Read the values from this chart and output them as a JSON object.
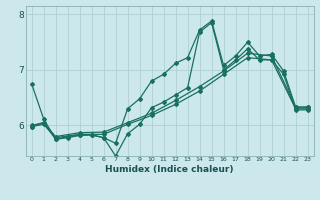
{
  "xlabel": "Humidex (Indice chaleur)",
  "bg_color": "#cce8ec",
  "line_color": "#1a7060",
  "grid_color": "#b0d0d4",
  "xlim": [
    -0.5,
    23.5
  ],
  "ylim": [
    5.45,
    8.15
  ],
  "xticks": [
    0,
    1,
    2,
    3,
    4,
    5,
    6,
    7,
    8,
    9,
    10,
    11,
    12,
    13,
    14,
    15,
    16,
    17,
    18,
    19,
    20,
    21,
    22,
    23
  ],
  "yticks": [
    6,
    7,
    8
  ],
  "line1_x": [
    0,
    1,
    2,
    3,
    4,
    5,
    6,
    7,
    8,
    9,
    10,
    11,
    12,
    13,
    14,
    15,
    16,
    17,
    18,
    19,
    20,
    21,
    22,
    23
  ],
  "line1_y": [
    6.75,
    6.12,
    5.75,
    5.8,
    5.83,
    5.83,
    5.78,
    5.68,
    6.3,
    6.48,
    6.8,
    6.92,
    7.12,
    7.22,
    7.72,
    7.88,
    7.08,
    7.25,
    7.5,
    7.25,
    7.28,
    6.98,
    6.33,
    6.33
  ],
  "line2_x": [
    0,
    1,
    2,
    3,
    4,
    5,
    6,
    7,
    8,
    9,
    10,
    11,
    12,
    13,
    14,
    15,
    16,
    17,
    18,
    19,
    20,
    21,
    22,
    23
  ],
  "line2_y": [
    5.98,
    6.05,
    5.75,
    5.78,
    5.82,
    5.83,
    5.78,
    5.45,
    5.85,
    6.02,
    6.32,
    6.42,
    6.55,
    6.68,
    7.68,
    7.85,
    7.0,
    7.18,
    7.38,
    7.18,
    7.18,
    6.92,
    6.28,
    6.28
  ],
  "line3_x": [
    0,
    1,
    2,
    4,
    6,
    8,
    10,
    12,
    14,
    16,
    18,
    20,
    22,
    23
  ],
  "line3_y": [
    5.98,
    6.02,
    5.78,
    5.84,
    5.84,
    6.02,
    6.18,
    6.38,
    6.62,
    6.92,
    7.22,
    7.18,
    6.3,
    6.3
  ],
  "line4_x": [
    0,
    1,
    2,
    4,
    6,
    8,
    10,
    12,
    14,
    16,
    18,
    20,
    22,
    23
  ],
  "line4_y": [
    6.0,
    6.05,
    5.8,
    5.87,
    5.88,
    6.05,
    6.22,
    6.45,
    6.7,
    6.98,
    7.3,
    7.25,
    6.33,
    6.33
  ]
}
